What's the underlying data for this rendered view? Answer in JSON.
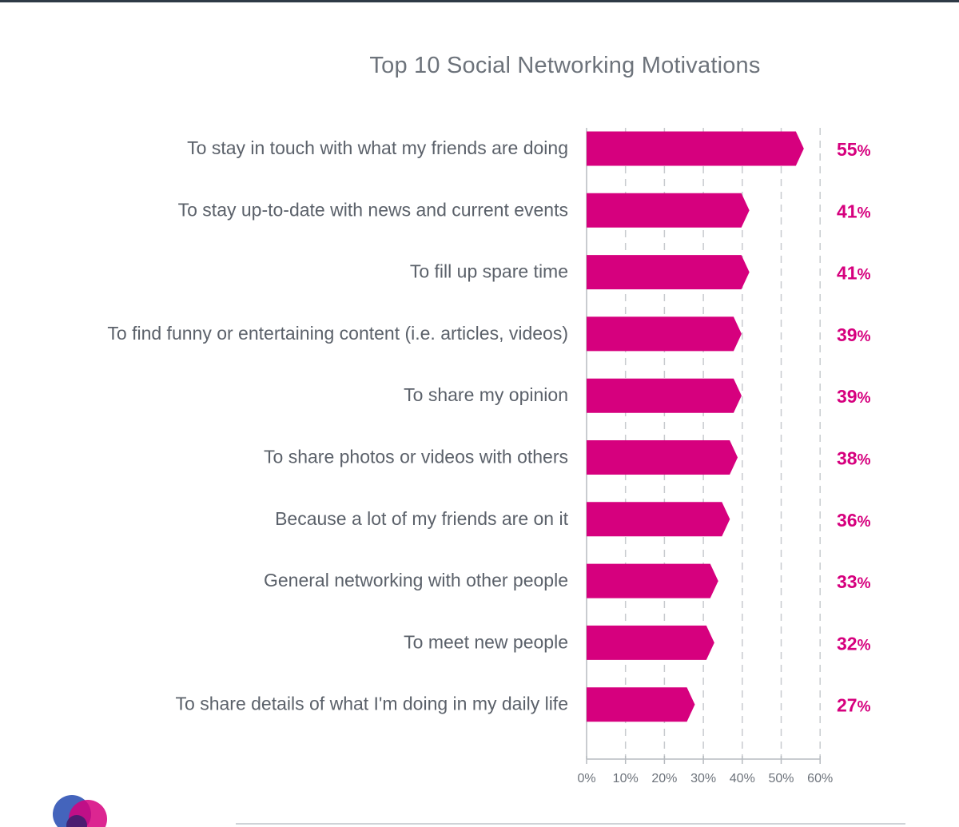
{
  "chart_data": {
    "type": "bar",
    "orientation": "horizontal",
    "title": "Top 10 Social Networking Motivations",
    "categories": [
      "To stay in touch with what my friends are doing",
      "To stay up-to-date with news and current events",
      "To fill up spare time",
      "To find funny or entertaining content (i.e. articles, videos)",
      "To share my opinion",
      "To share photos or videos with others",
      "Because a lot of my friends are on it",
      "General networking with other people",
      "To meet new people",
      "To share details of what I'm doing in my daily life"
    ],
    "values": [
      55,
      41,
      41,
      39,
      39,
      38,
      36,
      33,
      32,
      27
    ],
    "value_suffix": "%",
    "xlim": [
      0,
      60
    ],
    "xticks": [
      "0%",
      "10%",
      "20%",
      "30%",
      "40%",
      "50%",
      "60%"
    ],
    "grid": "vertical dashed",
    "bar_color": "#d6007e"
  },
  "colors": {
    "accent": "#d6007e",
    "text": "#5b616a",
    "grid": "#c8cbcf"
  }
}
